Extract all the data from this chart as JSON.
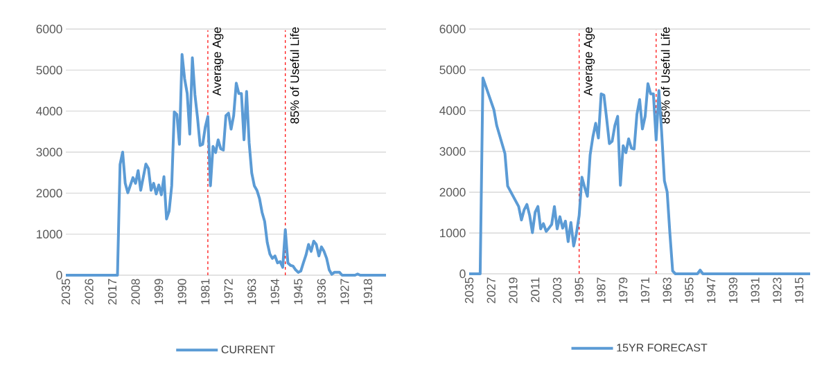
{
  "chart_data": [
    {
      "type": "line",
      "xlim": [
        2035,
        1911
      ],
      "xticks": [
        2035,
        2026,
        2017,
        2008,
        1999,
        1990,
        1981,
        1972,
        1963,
        1954,
        1945,
        1936,
        1927,
        1918
      ],
      "ylim": [
        0,
        6000
      ],
      "yticks": [
        0,
        1000,
        2000,
        3000,
        4000,
        5000,
        6000
      ],
      "grid": "y",
      "legend": "bottom",
      "x": [
        2035,
        2015,
        2014,
        2013,
        2012,
        2011,
        2009,
        2008,
        2007,
        2006,
        2004,
        2003,
        2002,
        2001,
        2000,
        1999,
        1998,
        1997,
        1996,
        1995,
        1994,
        1993,
        1992,
        1991,
        1990,
        1989,
        1988,
        1987,
        1986,
        1985,
        1984,
        1983,
        1982,
        1981,
        1980,
        1979,
        1978,
        1977,
        1976,
        1975,
        1974,
        1973,
        1972,
        1971,
        1970,
        1969,
        1968,
        1967,
        1966,
        1965,
        1964,
        1963,
        1962,
        1961,
        1960,
        1959,
        1958,
        1957,
        1956,
        1955,
        1954,
        1953,
        1952,
        1951,
        1950,
        1949,
        1948,
        1947,
        1946,
        1945,
        1944,
        1943,
        1942,
        1941,
        1940,
        1939,
        1938,
        1937,
        1936,
        1935,
        1934,
        1933,
        1932,
        1931,
        1930,
        1929,
        1928,
        1923,
        1922,
        1921,
        1911
      ],
      "series": [
        {
          "name": "CURRENT",
          "color": "#5b9bd5",
          "values": [
            0,
            0,
            2700,
            3000,
            2240,
            2010,
            2380,
            2240,
            2550,
            2070,
            2710,
            2600,
            2070,
            2240,
            1980,
            2200,
            1960,
            2400,
            1370,
            1560,
            2180,
            3980,
            3920,
            3190,
            5380,
            4790,
            4430,
            3440,
            5300,
            4400,
            3840,
            3160,
            3190,
            3610,
            3870,
            2180,
            3140,
            2990,
            3300,
            3080,
            3050,
            3890,
            3950,
            3560,
            3890,
            4680,
            4430,
            4430,
            3300,
            4480,
            3220,
            2490,
            2180,
            2070,
            1870,
            1530,
            1310,
            800,
            520,
            410,
            470,
            300,
            330,
            190,
            1110,
            300,
            240,
            220,
            130,
            70,
            100,
            300,
            490,
            750,
            580,
            830,
            750,
            470,
            690,
            580,
            410,
            130,
            20,
            70,
            70,
            70,
            0,
            0,
            30,
            0,
            0
          ]
        }
      ],
      "ref_lines": [
        {
          "axis": "x",
          "value": 1980,
          "label": "Average Age",
          "color": "#ff0000",
          "line_style": "dashed"
        },
        {
          "axis": "x",
          "value": 1950,
          "label": "85% of Useful Life",
          "color": "#ff0000",
          "line_style": "dashed"
        }
      ]
    },
    {
      "type": "line",
      "xlim": [
        2035,
        1911
      ],
      "xticks": [
        2035,
        2027,
        2019,
        2011,
        2003,
        1995,
        1987,
        1979,
        1971,
        1963,
        1955,
        1947,
        1939,
        1931,
        1923,
        1915
      ],
      "ylim": [
        0,
        6000
      ],
      "yticks": [
        0,
        1000,
        2000,
        3000,
        4000,
        5000,
        6000
      ],
      "grid": "y",
      "legend": "bottom",
      "x": [
        2035,
        2031,
        2030,
        2026,
        2025,
        2022,
        2021,
        2017,
        2016,
        2015,
        2014,
        2013,
        2012,
        2011,
        2010,
        2009,
        2008,
        2007,
        2006,
        2005,
        2004,
        2003,
        2002,
        2001,
        2000,
        1999,
        1998,
        1997,
        1996,
        1995,
        1994,
        1993,
        1992,
        1991,
        1990,
        1989,
        1988,
        1987,
        1986,
        1985,
        1984,
        1983,
        1982,
        1981,
        1980,
        1979,
        1978,
        1977,
        1976,
        1975,
        1974,
        1973,
        1972,
        1971,
        1970,
        1969,
        1968,
        1967,
        1966,
        1965,
        1964,
        1963,
        1962,
        1961,
        1960,
        1952,
        1951,
        1950,
        1911
      ],
      "series": [
        {
          "name": "15YR FORECAST",
          "color": "#5b9bd5",
          "values": [
            0,
            0,
            4800,
            4020,
            3640,
            2950,
            2150,
            1650,
            1320,
            1570,
            1700,
            1430,
            1010,
            1510,
            1650,
            1100,
            1230,
            1040,
            1120,
            1210,
            1650,
            1100,
            1400,
            1120,
            1290,
            790,
            1260,
            680,
            990,
            1430,
            2370,
            2120,
            1900,
            2920,
            3360,
            3690,
            3330,
            4410,
            4380,
            3800,
            3190,
            3250,
            3640,
            3860,
            2170,
            3140,
            2970,
            3310,
            3080,
            3060,
            3910,
            4270,
            3550,
            3860,
            4660,
            4410,
            4410,
            3280,
            4490,
            3470,
            2280,
            2010,
            990,
            70,
            0,
            0,
            90,
            0,
            0
          ]
        }
      ],
      "ref_lines": [
        {
          "axis": "x",
          "value": 1995,
          "label": "Average Age",
          "color": "#ff0000",
          "line_style": "dashed"
        },
        {
          "axis": "x",
          "value": 1967,
          "label": "85% of Useful Life",
          "color": "#ff0000",
          "line_style": "dashed"
        }
      ]
    }
  ]
}
